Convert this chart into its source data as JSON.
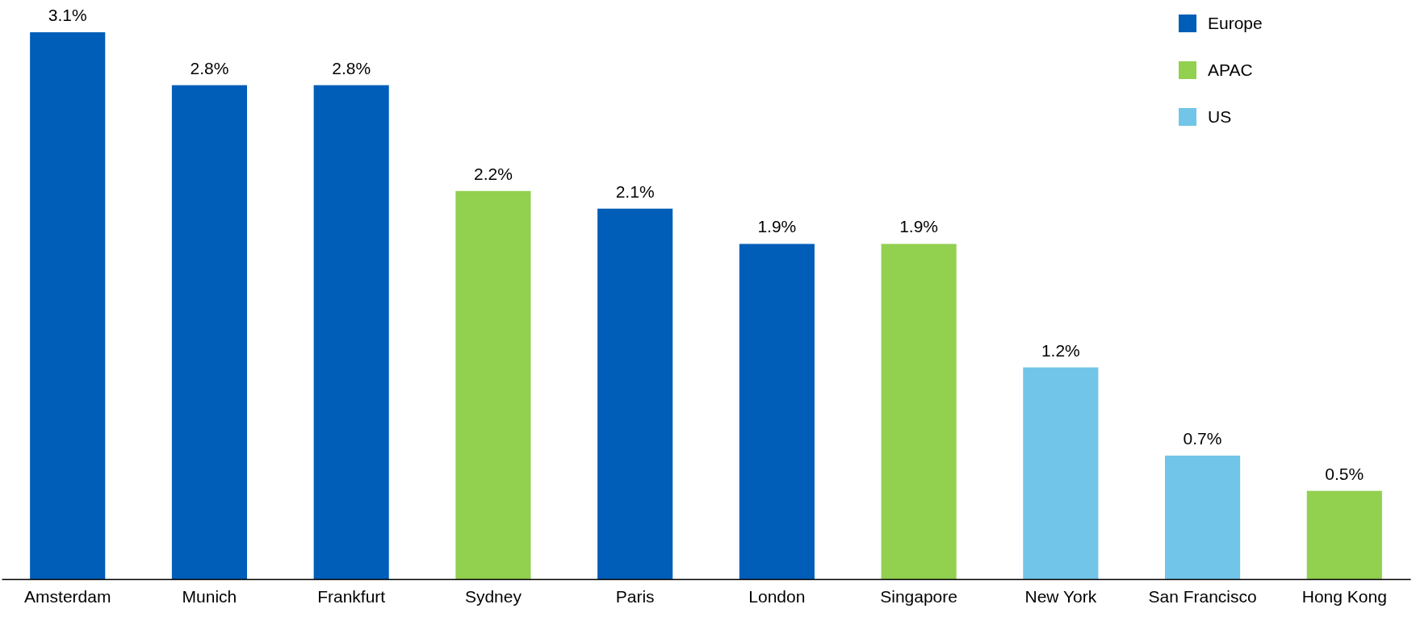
{
  "chart_data": {
    "type": "bar",
    "stacked": true,
    "legend": "top right",
    "categories": [
      "Amsterdam",
      "Munich",
      "Frankfurt",
      "Sydney",
      "Paris",
      "London",
      "Singapore",
      "New York",
      "San Francisco",
      "Hong Kong"
    ],
    "series": [
      {
        "name": "Europe",
        "color": "#005eb8",
        "values": [
          3.1,
          2.8,
          2.8,
          null,
          2.1,
          1.9,
          null,
          null,
          null,
          null
        ],
        "value_labels": [
          "3.1%",
          "2.8%",
          "2.8%",
          null,
          "2.1%",
          "1.9%",
          null,
          null,
          null,
          null
        ]
      },
      {
        "name": "APAC",
        "color": "#92d050",
        "values": [
          null,
          null,
          null,
          2.2,
          null,
          null,
          1.9,
          null,
          null,
          0.5
        ],
        "value_labels": [
          null,
          null,
          null,
          "2.2%",
          null,
          null,
          "1.9%",
          null,
          null,
          "0.5%"
        ]
      },
      {
        "name": "US",
        "color": "#71c5e8",
        "values": [
          null,
          null,
          null,
          null,
          null,
          null,
          null,
          1.2,
          0.7,
          null
        ],
        "value_labels": [
          null,
          null,
          null,
          null,
          null,
          null,
          null,
          "1.2%",
          "0.7%",
          null
        ]
      }
    ]
  }
}
